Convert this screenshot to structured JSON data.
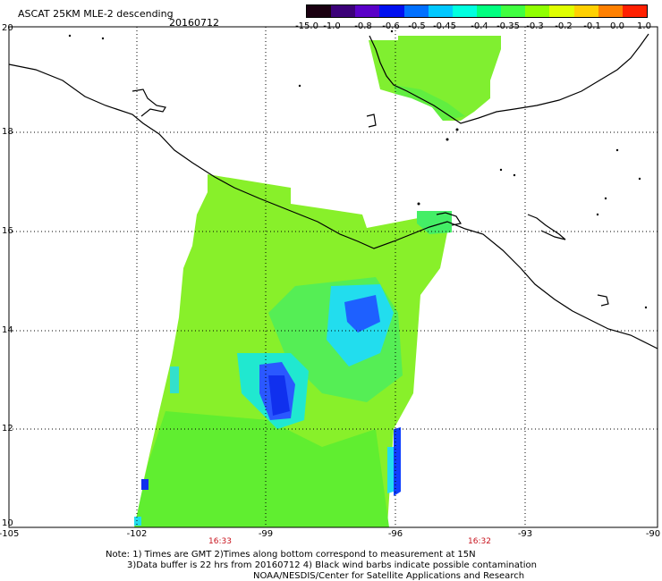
{
  "header": {
    "title": "ASCAT 25KM MLE-2 descending",
    "date": "20160712"
  },
  "colorbar": {
    "labels": [
      "-15.0",
      "-1.0",
      "-0.8",
      "-0.6",
      "-0.5",
      "-0.45",
      "-0.4",
      "-0.35",
      "-0.3",
      "-0.2",
      "-0.1",
      "0.0",
      "1.0"
    ],
    "colors": [
      "#1a0010",
      "#3b0078",
      "#5a00c8",
      "#0010f0",
      "#0070ff",
      "#00c8ff",
      "#00ffe0",
      "#00ff80",
      "#40ff40",
      "#90ff00",
      "#e0ff00",
      "#ffd000",
      "#ff8000",
      "#ff2000"
    ]
  },
  "axes": {
    "y_labels": [
      "20",
      "18",
      "16",
      "14",
      "12",
      "10"
    ],
    "x_labels": [
      "-105",
      "-102",
      "-99",
      "-96",
      "-93",
      "-90"
    ]
  },
  "times": [
    "16:33",
    "16:32"
  ],
  "notes": {
    "line1": "Note: 1) Times are GMT 2)Times along bottom correspond to measurement at 15N",
    "line2": "3)Data buffer is 22 hrs from 20160712 4) Black wind barbs indicate possible contamination",
    "line3": "NOAA/NESDIS/Center for Satellite Applications and Research"
  },
  "palette": {
    "green": "#66ee33",
    "yellow_green": "#a8f020",
    "cyan": "#22eeee",
    "blue": "#1040ff"
  }
}
